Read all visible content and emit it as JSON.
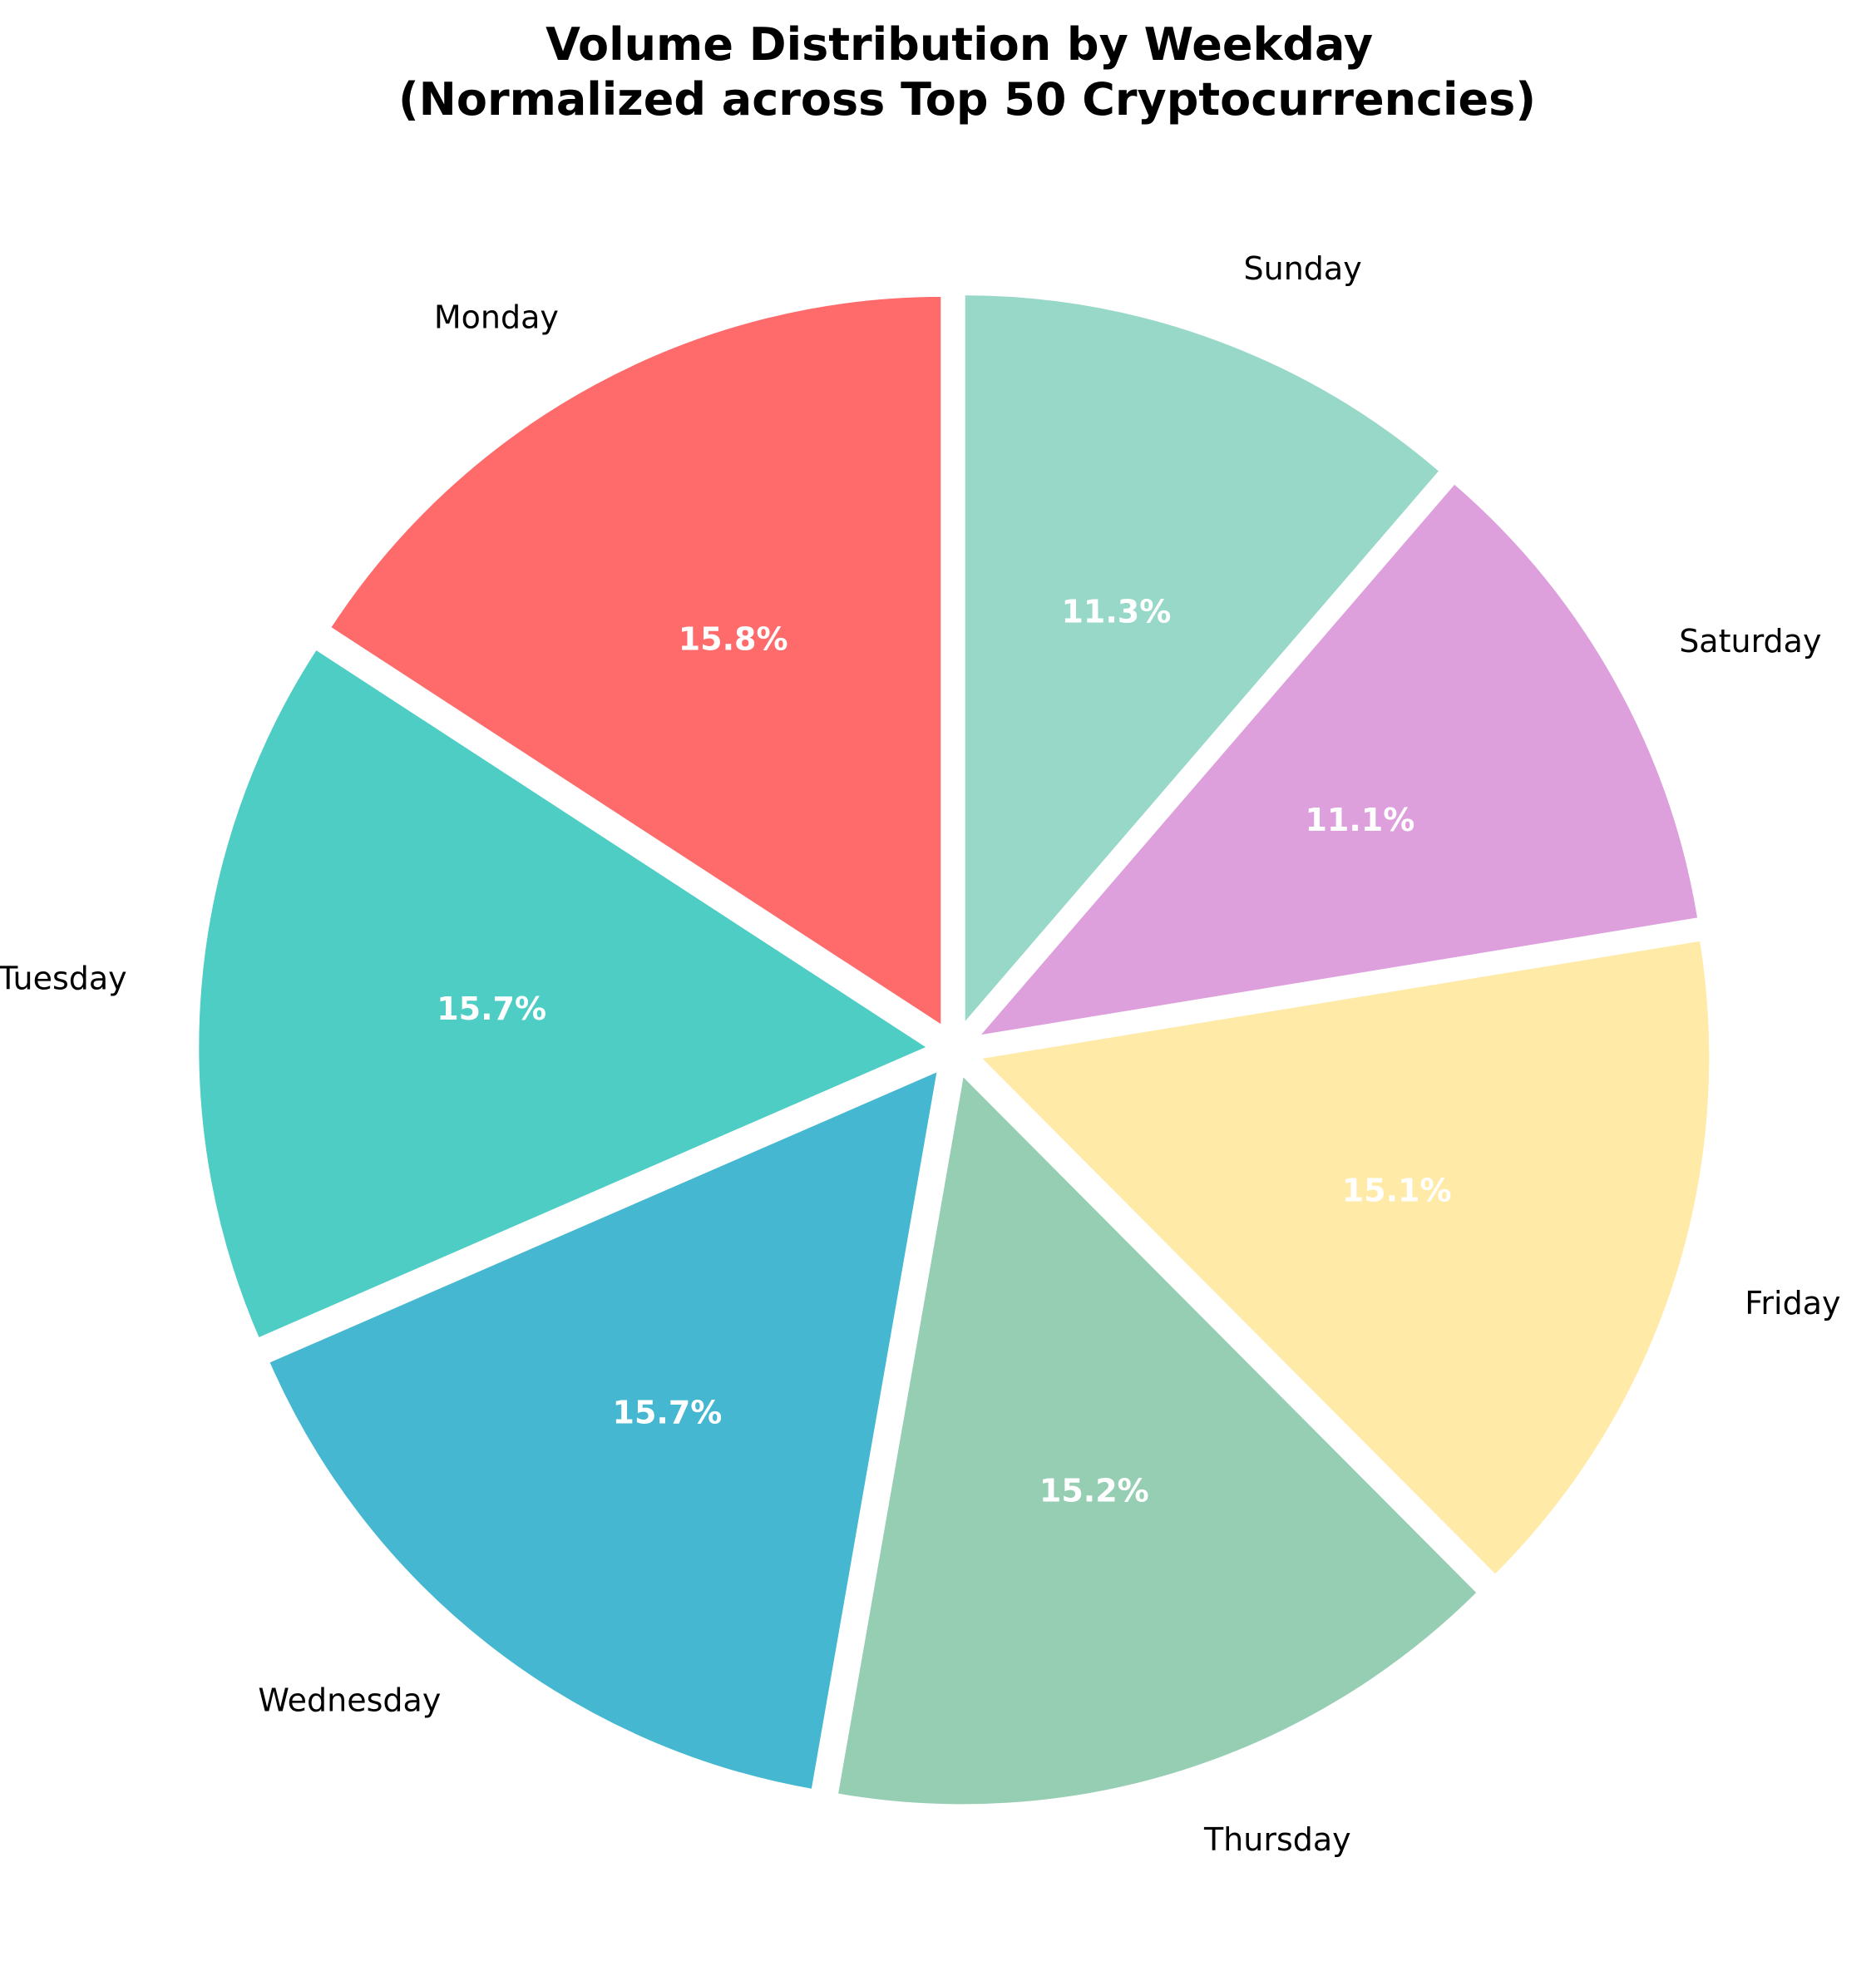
{
  "chart_data": {
    "type": "pie",
    "title_lines": [
      "Volume Distribution by Weekday",
      "(Normalized across Top 50 Cryptocurrencies)"
    ],
    "start_angle_deg": 90,
    "direction": "counterclockwise",
    "legend": "none",
    "slices": [
      {
        "label": "Monday",
        "value": 15.8,
        "pct_label": "15.8%",
        "color": "#FF6B6B"
      },
      {
        "label": "Tuesday",
        "value": 15.7,
        "pct_label": "15.7%",
        "color": "#4ECDC4"
      },
      {
        "label": "Wednesday",
        "value": 15.7,
        "pct_label": "15.7%",
        "color": "#45B7D1"
      },
      {
        "label": "Thursday",
        "value": 15.2,
        "pct_label": "15.2%",
        "color": "#96CEB4"
      },
      {
        "label": "Friday",
        "value": 15.1,
        "pct_label": "15.1%",
        "color": "#FFEAA7"
      },
      {
        "label": "Saturday",
        "value": 11.1,
        "pct_label": "11.1%",
        "color": "#DDA0DD"
      },
      {
        "label": "Sunday",
        "value": 11.3,
        "pct_label": "11.3%",
        "color": "#98D8C8"
      }
    ]
  }
}
